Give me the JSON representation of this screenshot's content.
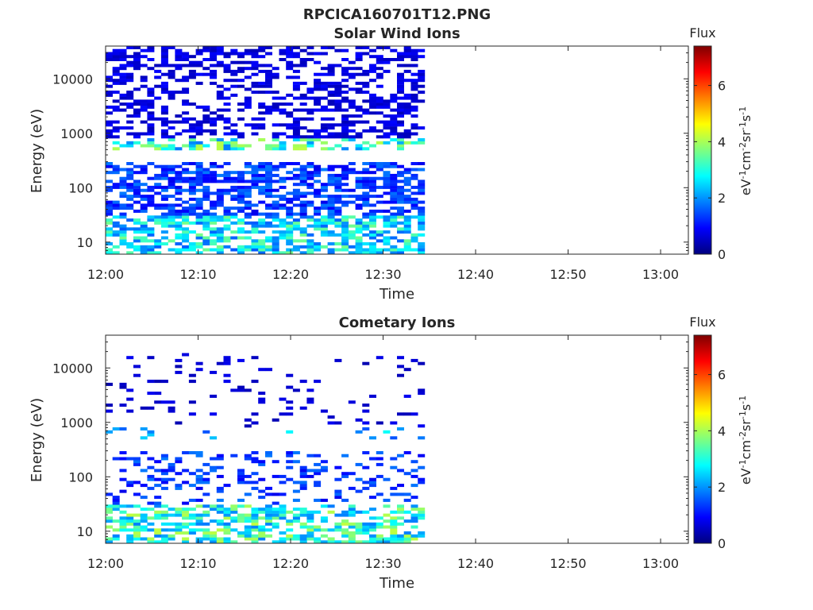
{
  "figure": {
    "title": "RPCICA160701T12.PNG"
  },
  "colormap": [
    "#00007f",
    "#0000ff",
    "#007fff",
    "#00ffff",
    "#7fff7f",
    "#ffff00",
    "#ff7f00",
    "#ff0000",
    "#7f0000"
  ],
  "chart_data": [
    {
      "type": "heatmap",
      "title": "Solar Wind Ions",
      "xlabel": "Time",
      "ylabel": "Energy (eV)",
      "x_ticks": [
        "12:00",
        "12:10",
        "12:20",
        "12:30",
        "12:40",
        "12:50",
        "13:00"
      ],
      "x_tick_minutes": [
        0,
        10,
        20,
        30,
        40,
        50,
        60
      ],
      "xlim_minutes": [
        0,
        63
      ],
      "y_scale": "log",
      "ylim": [
        6,
        40000
      ],
      "y_ticks": [
        "10",
        "100",
        "1000",
        "10000"
      ],
      "y_tick_values": [
        10,
        100,
        1000,
        10000
      ],
      "data_time_range_minutes": [
        0,
        34.5
      ],
      "colorbar": {
        "label": "Flux",
        "units_label": "eV-1cm-2sr-1s-1",
        "range": [
          0,
          7.4
        ],
        "ticks": [
          "0",
          "2",
          "4",
          "6"
        ],
        "tick_values": [
          0,
          2,
          4,
          6
        ]
      },
      "observed_flux_bands": [
        {
          "energy_range_eV": [
            6,
            30
          ],
          "typical_flux": 2.6
        },
        {
          "energy_range_eV": [
            30,
            300
          ],
          "typical_flux": 1.3
        },
        {
          "energy_range_eV": [
            500,
            800
          ],
          "typical_flux": 3.0
        },
        {
          "energy_range_eV": [
            800,
            40000
          ],
          "typical_flux": 0.7
        }
      ]
    },
    {
      "type": "heatmap",
      "title": "Cometary Ions",
      "xlabel": "Time",
      "ylabel": "Energy (eV)",
      "x_ticks": [
        "12:00",
        "12:10",
        "12:20",
        "12:30",
        "12:40",
        "12:50",
        "13:00"
      ],
      "x_tick_minutes": [
        0,
        10,
        20,
        30,
        40,
        50,
        60
      ],
      "xlim_minutes": [
        0,
        63
      ],
      "y_scale": "log",
      "ylim": [
        6,
        40000
      ],
      "y_ticks": [
        "10",
        "100",
        "1000",
        "10000"
      ],
      "y_tick_values": [
        10,
        100,
        1000,
        10000
      ],
      "data_time_range_minutes": [
        0,
        34.5
      ],
      "colorbar": {
        "label": "Flux",
        "units_label": "eV-1cm-2sr-1s-1",
        "range": [
          0,
          7.4
        ],
        "ticks": [
          "0",
          "2",
          "4",
          "6"
        ],
        "tick_values": [
          0,
          2,
          4,
          6
        ]
      },
      "observed_flux_bands": [
        {
          "energy_range_eV": [
            6,
            30
          ],
          "typical_flux": 3.0
        },
        {
          "energy_range_eV": [
            30,
            300
          ],
          "typical_flux": 1.3
        },
        {
          "energy_range_eV": [
            500,
            800
          ],
          "typical_flux": 2.2
        },
        {
          "energy_range_eV": [
            800,
            20000
          ],
          "typical_flux": 0.6
        }
      ]
    }
  ]
}
